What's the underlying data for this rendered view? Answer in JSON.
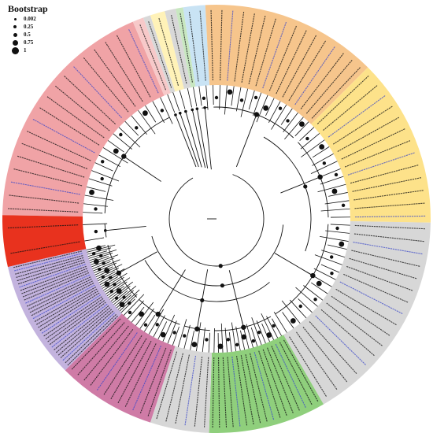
{
  "legend": {
    "title": "Bootstrap",
    "items": [
      {
        "label": "0.002",
        "dot": 0.002
      },
      {
        "label": "0.25",
        "dot": 0.25
      },
      {
        "label": "0.5",
        "dot": 0.5
      },
      {
        "label": "0.75",
        "dot": 0.75
      },
      {
        "label": "1",
        "dot": 1
      }
    ]
  },
  "colors": {
    "red": "#f0a3a6",
    "red_strong": "#e8321e",
    "pink_small": "#f7c9c9",
    "grey_small": "#d8d8d8",
    "yellow_small": "#fff2b8",
    "green_small": "#c8e7c0",
    "blue_small": "#c9e3f4",
    "orange": "#f6c58c",
    "yellow": "#fde28a",
    "grey": "#d7d7d7",
    "green": "#8fcf7c",
    "magenta": "#cf7ba6",
    "purple": "#c3b3de",
    "branch": "#111111",
    "label_black": "#111111",
    "label_blue": "#3a47c9"
  },
  "clades": [
    {
      "color": "red",
      "start": 271,
      "end": 337,
      "labels": 18
    },
    {
      "color": "red_strong",
      "start": 257,
      "end": 271,
      "labels": 2
    },
    {
      "color": "pink_small",
      "start": 337,
      "end": 340,
      "labels": 1
    },
    {
      "color": "grey_small",
      "start": 340,
      "end": 342,
      "labels": 1
    },
    {
      "color": "yellow_small",
      "start": 342,
      "end": 346,
      "labels": 1
    },
    {
      "color": "grey_small",
      "start": 346,
      "end": 349,
      "labels": 1
    },
    {
      "color": "green_small",
      "start": 349,
      "end": 351,
      "labels": 1
    },
    {
      "color": "blue_small",
      "start": 351,
      "end": 357,
      "labels": 2
    },
    {
      "color": "orange",
      "start": 357,
      "end": 45,
      "labels": 16
    },
    {
      "color": "yellow",
      "start": 45,
      "end": 91,
      "labels": 13
    },
    {
      "color": "grey",
      "start": 91,
      "end": 150,
      "labels": 17
    },
    {
      "color": "green",
      "start": 150,
      "end": 182,
      "labels": 17
    },
    {
      "color": "grey",
      "start": 182,
      "end": 198,
      "labels": 6
    },
    {
      "color": "magenta",
      "start": 198,
      "end": 225,
      "labels": 12
    },
    {
      "color": "purple",
      "start": 225,
      "end": 257,
      "labels": 34
    }
  ]
}
